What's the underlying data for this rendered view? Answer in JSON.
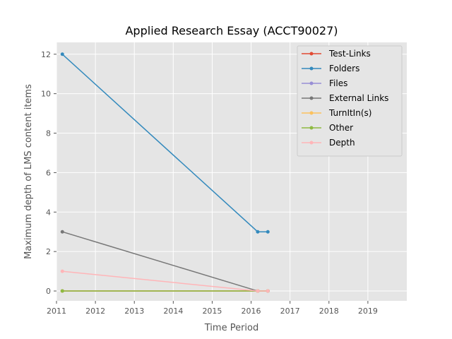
{
  "chart_data": {
    "type": "line",
    "title": "Applied Research Essay (ACCT90027)",
    "xlabel": "Time Period",
    "ylabel": "Maximum depth of LMS content items",
    "xlim": [
      2011,
      2020
    ],
    "ylim": [
      -0.5,
      12.6
    ],
    "xticks": [
      "2011",
      "2012",
      "2013",
      "2014",
      "2015",
      "2016",
      "2017",
      "2018",
      "2019"
    ],
    "yticks": [
      "0",
      "2",
      "4",
      "6",
      "8",
      "10",
      "12"
    ],
    "grid": true,
    "legend_position": "top-right",
    "x": [
      2011.15,
      2016.17,
      2016.43
    ],
    "series": [
      {
        "name": "Test-Links",
        "color": "#e24a33",
        "values": [
          0,
          0,
          0
        ]
      },
      {
        "name": "Folders",
        "color": "#348abd",
        "values": [
          12,
          3,
          3
        ]
      },
      {
        "name": "Files",
        "color": "#988ed5",
        "values": [
          0,
          0,
          0
        ]
      },
      {
        "name": "External Links",
        "color": "#777777",
        "values": [
          3,
          0,
          0
        ]
      },
      {
        "name": "TurnItIn(s)",
        "color": "#fbc15e",
        "values": [
          0,
          0,
          0
        ]
      },
      {
        "name": "Other",
        "color": "#8eba42",
        "values": [
          0,
          0,
          0
        ]
      },
      {
        "name": "Depth",
        "color": "#ffb5b8",
        "values": [
          1,
          0,
          0
        ]
      }
    ]
  }
}
